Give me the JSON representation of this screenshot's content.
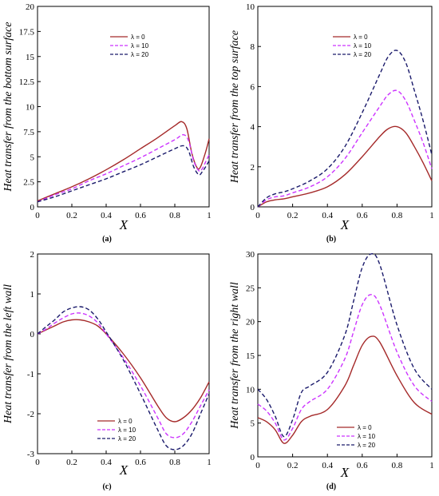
{
  "chart_data": [
    {
      "type": "line",
      "panel_label": "(a)",
      "xlabel": "X",
      "ylabel": "Heat transfer from the bottom surface",
      "xlim": [
        0,
        1
      ],
      "ylim": [
        0,
        20
      ],
      "xticks": [
        "0",
        "0.2",
        "0.4",
        "0.6",
        "0.8",
        "1"
      ],
      "yticks": [
        "0",
        "2.5",
        "5",
        "7.5",
        "10",
        "12.5",
        "15",
        "17.5",
        "20"
      ],
      "legend_position": "top-right",
      "series": [
        {
          "name": "λ = 0",
          "color": "#a52a2a",
          "style": "solid",
          "x": [
            0,
            0.1,
            0.2,
            0.3,
            0.4,
            0.5,
            0.6,
            0.7,
            0.8,
            0.84,
            0.87,
            0.9,
            0.93,
            0.95,
            0.98,
            1
          ],
          "y": [
            0.6,
            1.3,
            2.0,
            2.8,
            3.7,
            4.7,
            5.8,
            6.9,
            8.1,
            8.5,
            7.8,
            5.3,
            3.9,
            4.0,
            5.5,
            6.8
          ]
        },
        {
          "name": "λ = 10",
          "color": "#cc33ff",
          "style": "dashed",
          "x": [
            0,
            0.1,
            0.2,
            0.3,
            0.4,
            0.5,
            0.6,
            0.7,
            0.8,
            0.85,
            0.88,
            0.91,
            0.94,
            0.96,
            0.98,
            1
          ],
          "y": [
            0.5,
            1.2,
            1.8,
            2.6,
            3.3,
            4.1,
            4.9,
            5.8,
            6.7,
            7.2,
            6.6,
            4.6,
            3.6,
            3.8,
            4.5,
            5.2
          ]
        },
        {
          "name": "λ = 20",
          "color": "#1a1a6b",
          "style": "dashed",
          "x": [
            0,
            0.1,
            0.2,
            0.3,
            0.4,
            0.5,
            0.6,
            0.7,
            0.8,
            0.85,
            0.88,
            0.91,
            0.94,
            0.96,
            0.98,
            1
          ],
          "y": [
            0.5,
            1.0,
            1.6,
            2.2,
            2.8,
            3.5,
            4.2,
            5.0,
            5.8,
            6.1,
            5.6,
            4.0,
            3.2,
            3.5,
            4.0,
            4.6
          ]
        }
      ]
    },
    {
      "type": "line",
      "panel_label": "(b)",
      "xlabel": "X",
      "ylabel": "Heat transfer from the top surface",
      "xlim": [
        0,
        1
      ],
      "ylim": [
        0,
        10
      ],
      "xticks": [
        "0",
        "0.2",
        "0.4",
        "0.6",
        "0.8",
        "1"
      ],
      "yticks": [
        "0",
        "2",
        "4",
        "6",
        "8",
        "10"
      ],
      "legend_position": "top-right",
      "series": [
        {
          "name": "λ = 0",
          "color": "#a52a2a",
          "style": "solid",
          "x": [
            0,
            0.05,
            0.1,
            0.15,
            0.2,
            0.3,
            0.4,
            0.5,
            0.6,
            0.7,
            0.75,
            0.8,
            0.85,
            0.9,
            0.95,
            1
          ],
          "y": [
            0,
            0.25,
            0.35,
            0.4,
            0.5,
            0.7,
            1.0,
            1.6,
            2.5,
            3.5,
            3.9,
            4.0,
            3.7,
            3.0,
            2.2,
            1.3
          ]
        },
        {
          "name": "λ = 10",
          "color": "#cc33ff",
          "style": "dashed",
          "x": [
            0,
            0.05,
            0.1,
            0.15,
            0.2,
            0.3,
            0.4,
            0.5,
            0.6,
            0.7,
            0.75,
            0.8,
            0.85,
            0.9,
            0.95,
            1
          ],
          "y": [
            0,
            0.35,
            0.5,
            0.55,
            0.7,
            1.0,
            1.5,
            2.4,
            3.7,
            5.0,
            5.6,
            5.8,
            5.3,
            4.3,
            3.2,
            1.9
          ]
        },
        {
          "name": "λ = 20",
          "color": "#1a1a6b",
          "style": "dashed",
          "x": [
            0,
            0.05,
            0.1,
            0.15,
            0.2,
            0.3,
            0.4,
            0.5,
            0.6,
            0.7,
            0.75,
            0.8,
            0.85,
            0.9,
            0.95,
            1
          ],
          "y": [
            0,
            0.45,
            0.65,
            0.75,
            0.9,
            1.3,
            1.9,
            3.0,
            4.7,
            6.6,
            7.5,
            7.8,
            7.2,
            5.8,
            4.3,
            2.6
          ]
        }
      ]
    },
    {
      "type": "line",
      "panel_label": "(c)",
      "xlabel": "X",
      "ylabel": "Heat transfer from the left wall",
      "xlim": [
        0,
        1
      ],
      "ylim": [
        -3,
        2
      ],
      "xticks": [
        "0",
        "0.2",
        "0.4",
        "0.6",
        "0.8",
        "1"
      ],
      "yticks": [
        "-3",
        "-2",
        "-1",
        "0",
        "1",
        "2"
      ],
      "legend_position": "bottom-left",
      "series": [
        {
          "name": "λ = 0",
          "color": "#a52a2a",
          "style": "solid",
          "x": [
            0,
            0.05,
            0.1,
            0.15,
            0.2,
            0.25,
            0.3,
            0.35,
            0.4,
            0.5,
            0.6,
            0.7,
            0.75,
            0.8,
            0.85,
            0.9,
            0.95,
            1
          ],
          "y": [
            0,
            0.1,
            0.2,
            0.3,
            0.35,
            0.35,
            0.3,
            0.2,
            0.0,
            -0.5,
            -1.1,
            -1.8,
            -2.1,
            -2.2,
            -2.1,
            -1.9,
            -1.6,
            -1.2
          ]
        },
        {
          "name": "λ = 10",
          "color": "#cc33ff",
          "style": "dashed",
          "x": [
            0,
            0.05,
            0.1,
            0.15,
            0.2,
            0.25,
            0.3,
            0.35,
            0.4,
            0.5,
            0.6,
            0.7,
            0.75,
            0.8,
            0.85,
            0.9,
            0.95,
            1
          ],
          "y": [
            0,
            0.12,
            0.27,
            0.4,
            0.5,
            0.52,
            0.45,
            0.28,
            0.0,
            -0.6,
            -1.3,
            -2.1,
            -2.5,
            -2.6,
            -2.5,
            -2.2,
            -1.8,
            -1.4
          ]
        },
        {
          "name": "λ = 20",
          "color": "#1a1a6b",
          "style": "dashed",
          "x": [
            0,
            0.05,
            0.1,
            0.15,
            0.2,
            0.25,
            0.3,
            0.35,
            0.4,
            0.5,
            0.6,
            0.7,
            0.75,
            0.8,
            0.85,
            0.9,
            0.95,
            1
          ],
          "y": [
            0,
            0.18,
            0.35,
            0.55,
            0.65,
            0.68,
            0.6,
            0.38,
            0.05,
            -0.65,
            -1.5,
            -2.4,
            -2.8,
            -2.9,
            -2.8,
            -2.5,
            -2.0,
            -1.5
          ]
        }
      ]
    },
    {
      "type": "line",
      "panel_label": "(d)",
      "xlabel": "X",
      "ylabel": "Heat transfer from the right wall",
      "xlim": [
        0,
        1
      ],
      "ylim": [
        0,
        30
      ],
      "xticks": [
        "0",
        "0.2",
        "0.4",
        "0.6",
        "0.8",
        "1"
      ],
      "yticks": [
        "0",
        "5",
        "10",
        "15",
        "20",
        "25",
        "30"
      ],
      "legend_position": "bottom-right",
      "series": [
        {
          "name": "λ = 0",
          "color": "#a52a2a",
          "style": "solid",
          "x": [
            0,
            0.05,
            0.1,
            0.15,
            0.2,
            0.25,
            0.3,
            0.4,
            0.5,
            0.55,
            0.6,
            0.65,
            0.7,
            0.8,
            0.9,
            1
          ],
          "y": [
            5.8,
            5.2,
            4.0,
            2.0,
            3.2,
            5.2,
            6.0,
            7.0,
            10.5,
            13.5,
            16.5,
            17.8,
            17.0,
            12.0,
            8.0,
            6.3
          ]
        },
        {
          "name": "λ = 10",
          "color": "#cc33ff",
          "style": "dashed",
          "x": [
            0,
            0.05,
            0.1,
            0.15,
            0.2,
            0.25,
            0.3,
            0.4,
            0.5,
            0.55,
            0.6,
            0.65,
            0.7,
            0.8,
            0.9,
            1
          ],
          "y": [
            7.8,
            6.8,
            5.0,
            2.5,
            4.2,
            7.0,
            8.2,
            10.0,
            14.5,
            18.5,
            22.5,
            24.0,
            22.5,
            15.5,
            10.5,
            8.2
          ]
        },
        {
          "name": "λ = 20",
          "color": "#1a1a6b",
          "style": "dashed",
          "x": [
            0,
            0.05,
            0.1,
            0.15,
            0.2,
            0.25,
            0.3,
            0.4,
            0.5,
            0.55,
            0.6,
            0.65,
            0.7,
            0.8,
            0.9,
            1
          ],
          "y": [
            10.0,
            8.5,
            6.0,
            3.0,
            5.5,
            9.5,
            10.5,
            12.5,
            18.0,
            23.0,
            28.0,
            30.0,
            28.5,
            19.5,
            13.0,
            10.0
          ]
        }
      ]
    }
  ]
}
